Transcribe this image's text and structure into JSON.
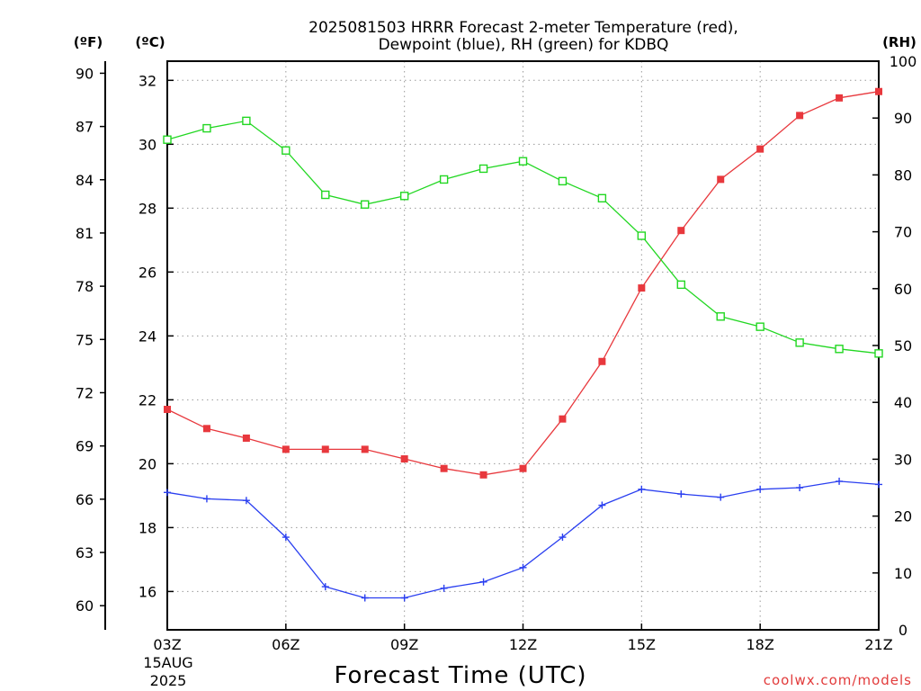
{
  "chart_data": {
    "type": "line",
    "title": "2025081503 HRRR Forecast 2-meter Temperature (red),",
    "subtitle": "Dewpoint (blue), RH (green) for KDBQ",
    "xlabel": "Forecast Time (UTC)",
    "credit": "coolwx.com/models",
    "units": {
      "fahrenheit": "(ºF)",
      "celsius": "(ºC)",
      "rh": "(RH)"
    },
    "date_label": {
      "day": "15AUG",
      "year": "2025"
    },
    "x": [
      3,
      4,
      5,
      6,
      7,
      8,
      9,
      10,
      11,
      12,
      13,
      14,
      15,
      16,
      17,
      18,
      19,
      20,
      21
    ],
    "x_ticks": [
      {
        "value": 3,
        "label": "03Z"
      },
      {
        "value": 6,
        "label": "06Z"
      },
      {
        "value": 9,
        "label": "09Z"
      },
      {
        "value": 12,
        "label": "12Z"
      },
      {
        "value": 15,
        "label": "15Z"
      },
      {
        "value": 18,
        "label": "18Z"
      },
      {
        "value": 21,
        "label": "21Z"
      }
    ],
    "xlim": [
      3,
      21
    ],
    "celsius_axis": {
      "ylim": [
        14.8,
        32.6
      ],
      "ticks": [
        "16",
        "18",
        "20",
        "22",
        "24",
        "26",
        "28",
        "30",
        "32"
      ]
    },
    "fahrenheit_axis": {
      "ticks": [
        "60",
        "63",
        "66",
        "69",
        "72",
        "75",
        "78",
        "81",
        "84",
        "87",
        "90"
      ]
    },
    "rh_axis": {
      "ylim": [
        0,
        100
      ],
      "ticks": [
        "0",
        "10",
        "20",
        "30",
        "40",
        "50",
        "60",
        "70",
        "80",
        "90",
        "100"
      ]
    },
    "grid": true,
    "series": [
      {
        "name": "Temperature (red)",
        "axis": "celsius",
        "color": "#e8383d",
        "marker": "filled-square",
        "values": [
          21.7,
          21.1,
          20.8,
          20.45,
          20.45,
          20.45,
          20.15,
          19.85,
          19.65,
          19.85,
          21.4,
          23.2,
          25.5,
          27.3,
          28.9,
          29.85,
          30.9,
          31.45,
          31.65
        ]
      },
      {
        "name": "Dewpoint (blue)",
        "axis": "celsius",
        "color": "#2a3ff0",
        "marker": "plus",
        "values": [
          19.1,
          18.9,
          18.85,
          17.7,
          16.15,
          15.8,
          15.8,
          16.1,
          16.3,
          16.75,
          17.7,
          18.7,
          19.2,
          19.05,
          18.95,
          19.2,
          19.25,
          19.45,
          19.35
        ]
      },
      {
        "name": "RH (green)",
        "axis": "rh",
        "color": "#22d722",
        "marker": "open-square",
        "values": [
          86.2,
          88.2,
          89.5,
          84.3,
          76.5,
          74.8,
          76.3,
          79.2,
          81.1,
          82.4,
          78.9,
          75.9,
          69.3,
          60.7,
          55.1,
          53.3,
          50.5,
          49.4,
          48.6
        ]
      }
    ]
  }
}
